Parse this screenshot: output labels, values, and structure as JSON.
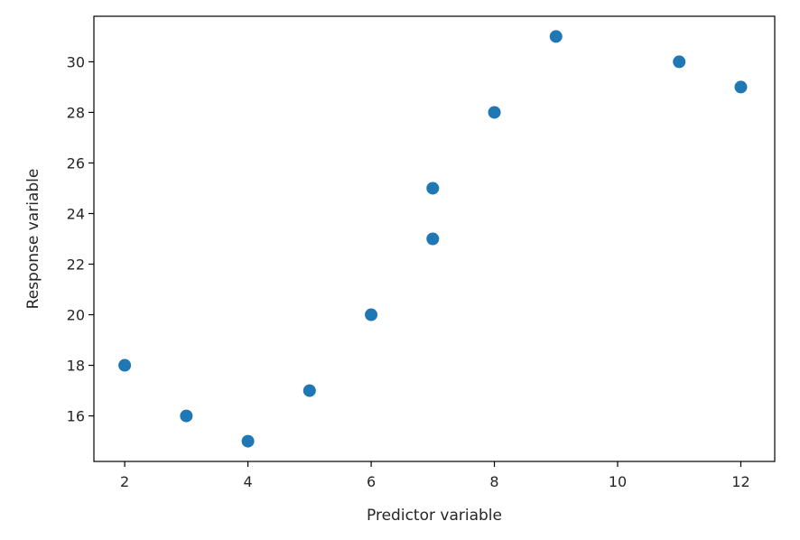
{
  "chart_data": {
    "type": "scatter",
    "title": "",
    "xlabel": "Predictor variable",
    "ylabel": "Response variable",
    "xlim": [
      1.5,
      12.55
    ],
    "ylim": [
      14.2,
      31.8
    ],
    "xticks": [
      2,
      4,
      6,
      8,
      10,
      12
    ],
    "yticks": [
      16,
      18,
      20,
      22,
      24,
      26,
      28,
      30
    ],
    "grid": false,
    "legend": "none",
    "marker_color": "#1f77b4",
    "points": [
      {
        "x": 2,
        "y": 18
      },
      {
        "x": 3,
        "y": 16
      },
      {
        "x": 4,
        "y": 15
      },
      {
        "x": 5,
        "y": 17
      },
      {
        "x": 6,
        "y": 20
      },
      {
        "x": 7,
        "y": 23
      },
      {
        "x": 7,
        "y": 25
      },
      {
        "x": 8,
        "y": 28
      },
      {
        "x": 9,
        "y": 31
      },
      {
        "x": 11,
        "y": 30
      },
      {
        "x": 12,
        "y": 29
      }
    ]
  }
}
